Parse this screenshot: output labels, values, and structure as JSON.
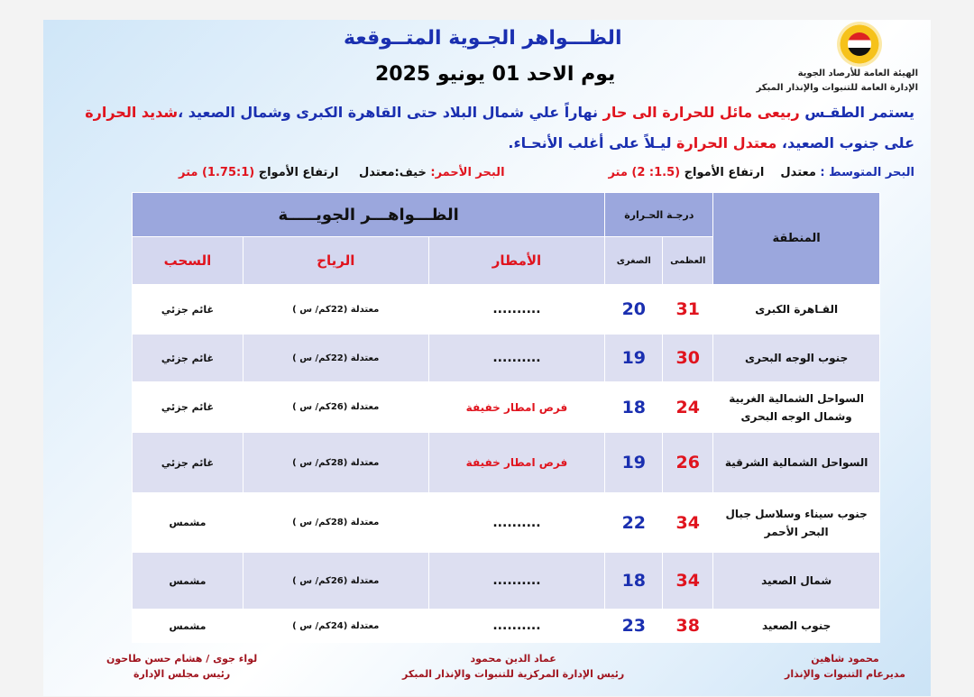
{
  "header": {
    "org_line1": "الهيئة العامة للأرصاد الجوية",
    "org_line2": "الإدارة العامة للتنبوات والإنذار المبكر",
    "title": "الظـــواهر الجـوية المتــوقعة",
    "date": "يوم   الاحد 01 يونيو 2025"
  },
  "summary": {
    "p1": [
      "يستمر الطقـس ",
      "ربيعى مائل للحرارة الى حار",
      " نهاراً علي شمال البلاد حتى القاهرة الكبرى وشمال الصعيد ،",
      "شديد الحرارة"
    ],
    "p2": [
      "على جنوب الصعيد، ",
      "معتدل الحرارة",
      " ليـلاً على أغلب الأنحـاء."
    ]
  },
  "seas": {
    "med_label": "البحر المتوسط :",
    "med_state": "معتدل",
    "med_waves_label": "ارتفاع الأمواج",
    "med_waves": "(1.5: 2) متر",
    "red_label": "البحر الأحمر:",
    "red_state": "خيف:معتدل",
    "red_waves_label": "ارتفاع الأمواج",
    "red_waves": "(1.75:1) متر"
  },
  "table": {
    "region_header": "المنطقة",
    "temp_header": "درجـة الحـرارة",
    "phenomena_header": "الظـــواهـــر الجويـــــة",
    "max_header": "العظمى",
    "min_header": "الصغرى",
    "rain_header": "الأمطار",
    "wind_header": "الرياح",
    "cloud_header": "السحب",
    "rows": [
      {
        "region": "القـاهرة الكبرى",
        "max": "31",
        "min": "20",
        "rain": "..........",
        "wind": "معتدلة (22كم/ س )",
        "cloud": "غائم جزئي"
      },
      {
        "region": "جنوب الوجه البحرى",
        "max": "30",
        "min": "19",
        "rain": "..........",
        "wind": "معتدلة (22كم/ س )",
        "cloud": "غائم جزئي"
      },
      {
        "region": "السواحل الشمالية الغربية وشمال الوجه البحرى",
        "max": "24",
        "min": "18",
        "rain": "فرص امطار خفيفة",
        "wind": "معتدلة (26كم/ س )",
        "cloud": "غائم جزئي"
      },
      {
        "region": "السواحل الشمالية الشرقية",
        "max": "26",
        "min": "19",
        "rain": "فرص امطار خفيفة",
        "wind": "معتدلة (28كم/ س )",
        "cloud": "غائم جزئي"
      },
      {
        "region": "جنوب سيناء وسلاسل جبال البحر الأحمر",
        "max": "34",
        "min": "22",
        "rain": "..........",
        "wind": "معتدلة (28كم/ س )",
        "cloud": "مشمس"
      },
      {
        "region": "شمال الصعيد",
        "max": "34",
        "min": "18",
        "rain": "..........",
        "wind": "معتدلة (26كم/ س )",
        "cloud": "مشمس"
      },
      {
        "region": "جنوب الصعيد",
        "max": "38",
        "min": "23",
        "rain": "..........",
        "wind": "معتدلة (24كم/ س )",
        "cloud": "مشمس"
      }
    ]
  },
  "signatures": [
    {
      "name": "محمود شاهين",
      "role": "مديرعام التنبوات والإنذار"
    },
    {
      "name": "عماد الدين محمود",
      "role": "رئيس الإدارة المركزية للتنبوات والإنذار المبكر"
    },
    {
      "name": "لواء جوى / هشام حسن طاحون",
      "role": "رئيس مجلس الإدارة"
    }
  ],
  "colors": {
    "title_blue": "#1a2fb0",
    "accent_red": "#e0141e",
    "header_blue": "#9ba7dd",
    "row_alt": "#dddff1"
  }
}
